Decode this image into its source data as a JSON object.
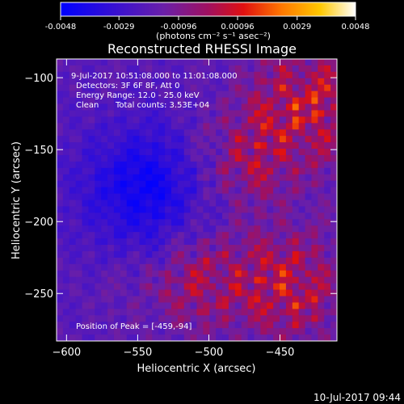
{
  "chart_data": {
    "type": "heatmap",
    "title": "Reconstructed RHESSI Image",
    "xlabel": "Heliocentric X (arcsec)",
    "ylabel": "Heliocentric Y (arcsec)",
    "xlim": [
      -607,
      -410
    ],
    "ylim": [
      -283,
      -87
    ],
    "x_ticks": [
      -600,
      -550,
      -500,
      -450
    ],
    "y_ticks": [
      -100,
      -150,
      -200,
      -250
    ],
    "colorbar": {
      "colormap": "blue-purple-red-orange-yellow-white",
      "min": -0.0048,
      "max": 0.0048,
      "ticks": [
        "-0.0048",
        "-0.0029",
        "-0.00096",
        "0.00096",
        "0.0029",
        "0.0048"
      ],
      "unit_label": "(photons cm⁻² s⁻¹ asec⁻²)"
    },
    "annotations": [
      "9-Jul-2017 10:51:08.000 to 11:01:08.000",
      "Detectors: 3F 6F 8F, Att 0",
      "Energy Range: 12.0 - 25.0 keV",
      "Clean",
      "Total counts: 3.53E+04",
      "Position of Peak = [-459,-94]"
    ],
    "peak": [
      -459,
      -94
    ],
    "grid": false,
    "footer_timestamp": "10-Jul-2017 09:44"
  },
  "colors": {
    "background": "#000000",
    "axes": "#ffffff",
    "cmap_stops": [
      "#0000ff",
      "#5a1fb0",
      "#8a1f8c",
      "#d01818",
      "#ff7800",
      "#ffc800",
      "#ffffff"
    ]
  }
}
